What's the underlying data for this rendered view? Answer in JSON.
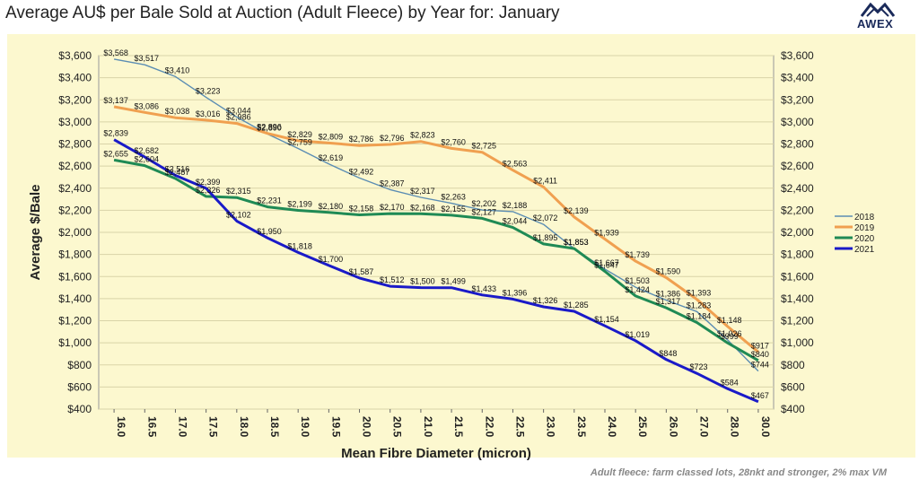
{
  "title": "Average AU$ per Bale Sold at Auction (Adult Fleece) by Year for: January",
  "logo_text": "AWEX",
  "footnote": "Adult fleece: farm classed lots, 28nkt and stronger, 2% max VM",
  "colors": {
    "plot_bg": "#fcf8cf",
    "grid": "#d9d4a8",
    "s2018": "#5b8db3",
    "s2019": "#f0a050",
    "s2020": "#1f8a55",
    "s2021": "#1a1ac8"
  },
  "chart_data": {
    "type": "line",
    "title": "Average AU$ per Bale Sold at Auction (Adult Fleece) by Year for: January",
    "xlabel": "Mean Fibre Diameter (micron)",
    "ylabel": "Average $/Bale",
    "categories": [
      "16.0",
      "16.5",
      "17.0",
      "17.5",
      "18.0",
      "18.5",
      "19.0",
      "19.5",
      "20.0",
      "20.5",
      "21.0",
      "21.5",
      "22.0",
      "22.5",
      "23.0",
      "23.5",
      "24.0",
      "25.0",
      "26.0",
      "27.0",
      "28.0",
      "30.0"
    ],
    "ylim": [
      400,
      3600
    ],
    "ytick_step": 200,
    "yticks_left": [
      "$3,600",
      "$3,400",
      "$3,200",
      "$3,000",
      "$2,800",
      "$2,600",
      "$2,400",
      "$2,200",
      "$2,000",
      "$1,800",
      "$1,600",
      "$1,400",
      "$1,200",
      "$1,000",
      "$800",
      "$600",
      "$400"
    ],
    "yticks_right": [
      "$3,600",
      "$3,400",
      "$3,200",
      "$3,000",
      "$2,800",
      "$2,600",
      "$2,400",
      "$2,200",
      "$2,000",
      "$1,800",
      "$1,600",
      "$1,400",
      "$1,200",
      "$1,000",
      "$800",
      "$600",
      "$400"
    ],
    "grid": "horizontal",
    "legend_position": "right",
    "series": [
      {
        "name": "2018",
        "color_key": "s2018",
        "values": [
          3568,
          3517,
          3410,
          3223,
          3044,
          2890,
          2759,
          2619,
          2492,
          2387,
          2317,
          2263,
          2202,
          2188,
          2072,
          1853,
          1667,
          1503,
          1386,
          1283,
          1026,
          744
        ],
        "labels": [
          "$3,568",
          "$3,517",
          "$3,410",
          "$3,223",
          "$3,044",
          "$2,890",
          "$2,759",
          "$2,619",
          "$2,492",
          "$2,387",
          "$2,317",
          "$2,263",
          "$2,202",
          "$2,188",
          "$2,072",
          "$1,853",
          "$1,667",
          "$1,503",
          "$1,386",
          "$1,283",
          "$1,026",
          "$744"
        ]
      },
      {
        "name": "2019",
        "color_key": "s2019",
        "values": [
          3137,
          3086,
          3038,
          3016,
          2986,
          2896,
          2829,
          2809,
          2786,
          2796,
          2823,
          2760,
          2725,
          2563,
          2411,
          2139,
          1939,
          1739,
          1590,
          1393,
          1148,
          917
        ],
        "labels": [
          "$3,137",
          "$3,086",
          "$3,038",
          "$3,016",
          "$2,986",
          "$2,896",
          "$2,829",
          "$2,809",
          "$2,786",
          "$2,796",
          "$2,823",
          "$2,760",
          "$2,725",
          "$2,563",
          "$2,411",
          "$2,139",
          "$1,939",
          "$1,739",
          "$1,590",
          "$1,393",
          "$1,148",
          "$917"
        ]
      },
      {
        "name": "2020",
        "color_key": "s2020",
        "values": [
          2655,
          2604,
          2487,
          2326,
          2315,
          2231,
          2199,
          2180,
          2158,
          2170,
          2168,
          2155,
          2127,
          2044,
          1895,
          1853,
          1647,
          1424,
          1317,
          1184,
          999,
          840
        ],
        "labels": [
          "$2,655",
          "$2,604",
          "$2,487",
          "$2,326",
          "$2,315",
          "$2,231",
          "$2,199",
          "$2,180",
          "$2,158",
          "$2,170",
          "$2,168",
          "$2,155",
          "$2,127",
          "$2,044",
          "$1,895",
          "$1,853",
          "$1,647",
          "$1,424",
          "$1,317",
          "$1,184",
          "$999",
          "$840"
        ]
      },
      {
        "name": "2021",
        "color_key": "s2021",
        "values": [
          2839,
          2682,
          2516,
          2399,
          2102,
          1950,
          1818,
          1700,
          1587,
          1512,
          1500,
          1499,
          1433,
          1396,
          1326,
          1285,
          1154,
          1019,
          848,
          723,
          584,
          467
        ],
        "labels": [
          "$2,839",
          "$2,682",
          "$2,516",
          "$2,399",
          "$2,102",
          "$1,950",
          "$1,818",
          "$1,700",
          "$1,587",
          "$1,512",
          "$1,500",
          "$1,499",
          "$1,433",
          "$1,396",
          "$1,326",
          "$1,285",
          "$1,154",
          "$1,019",
          "$848",
          "$723",
          "$584",
          "$467"
        ]
      }
    ]
  }
}
